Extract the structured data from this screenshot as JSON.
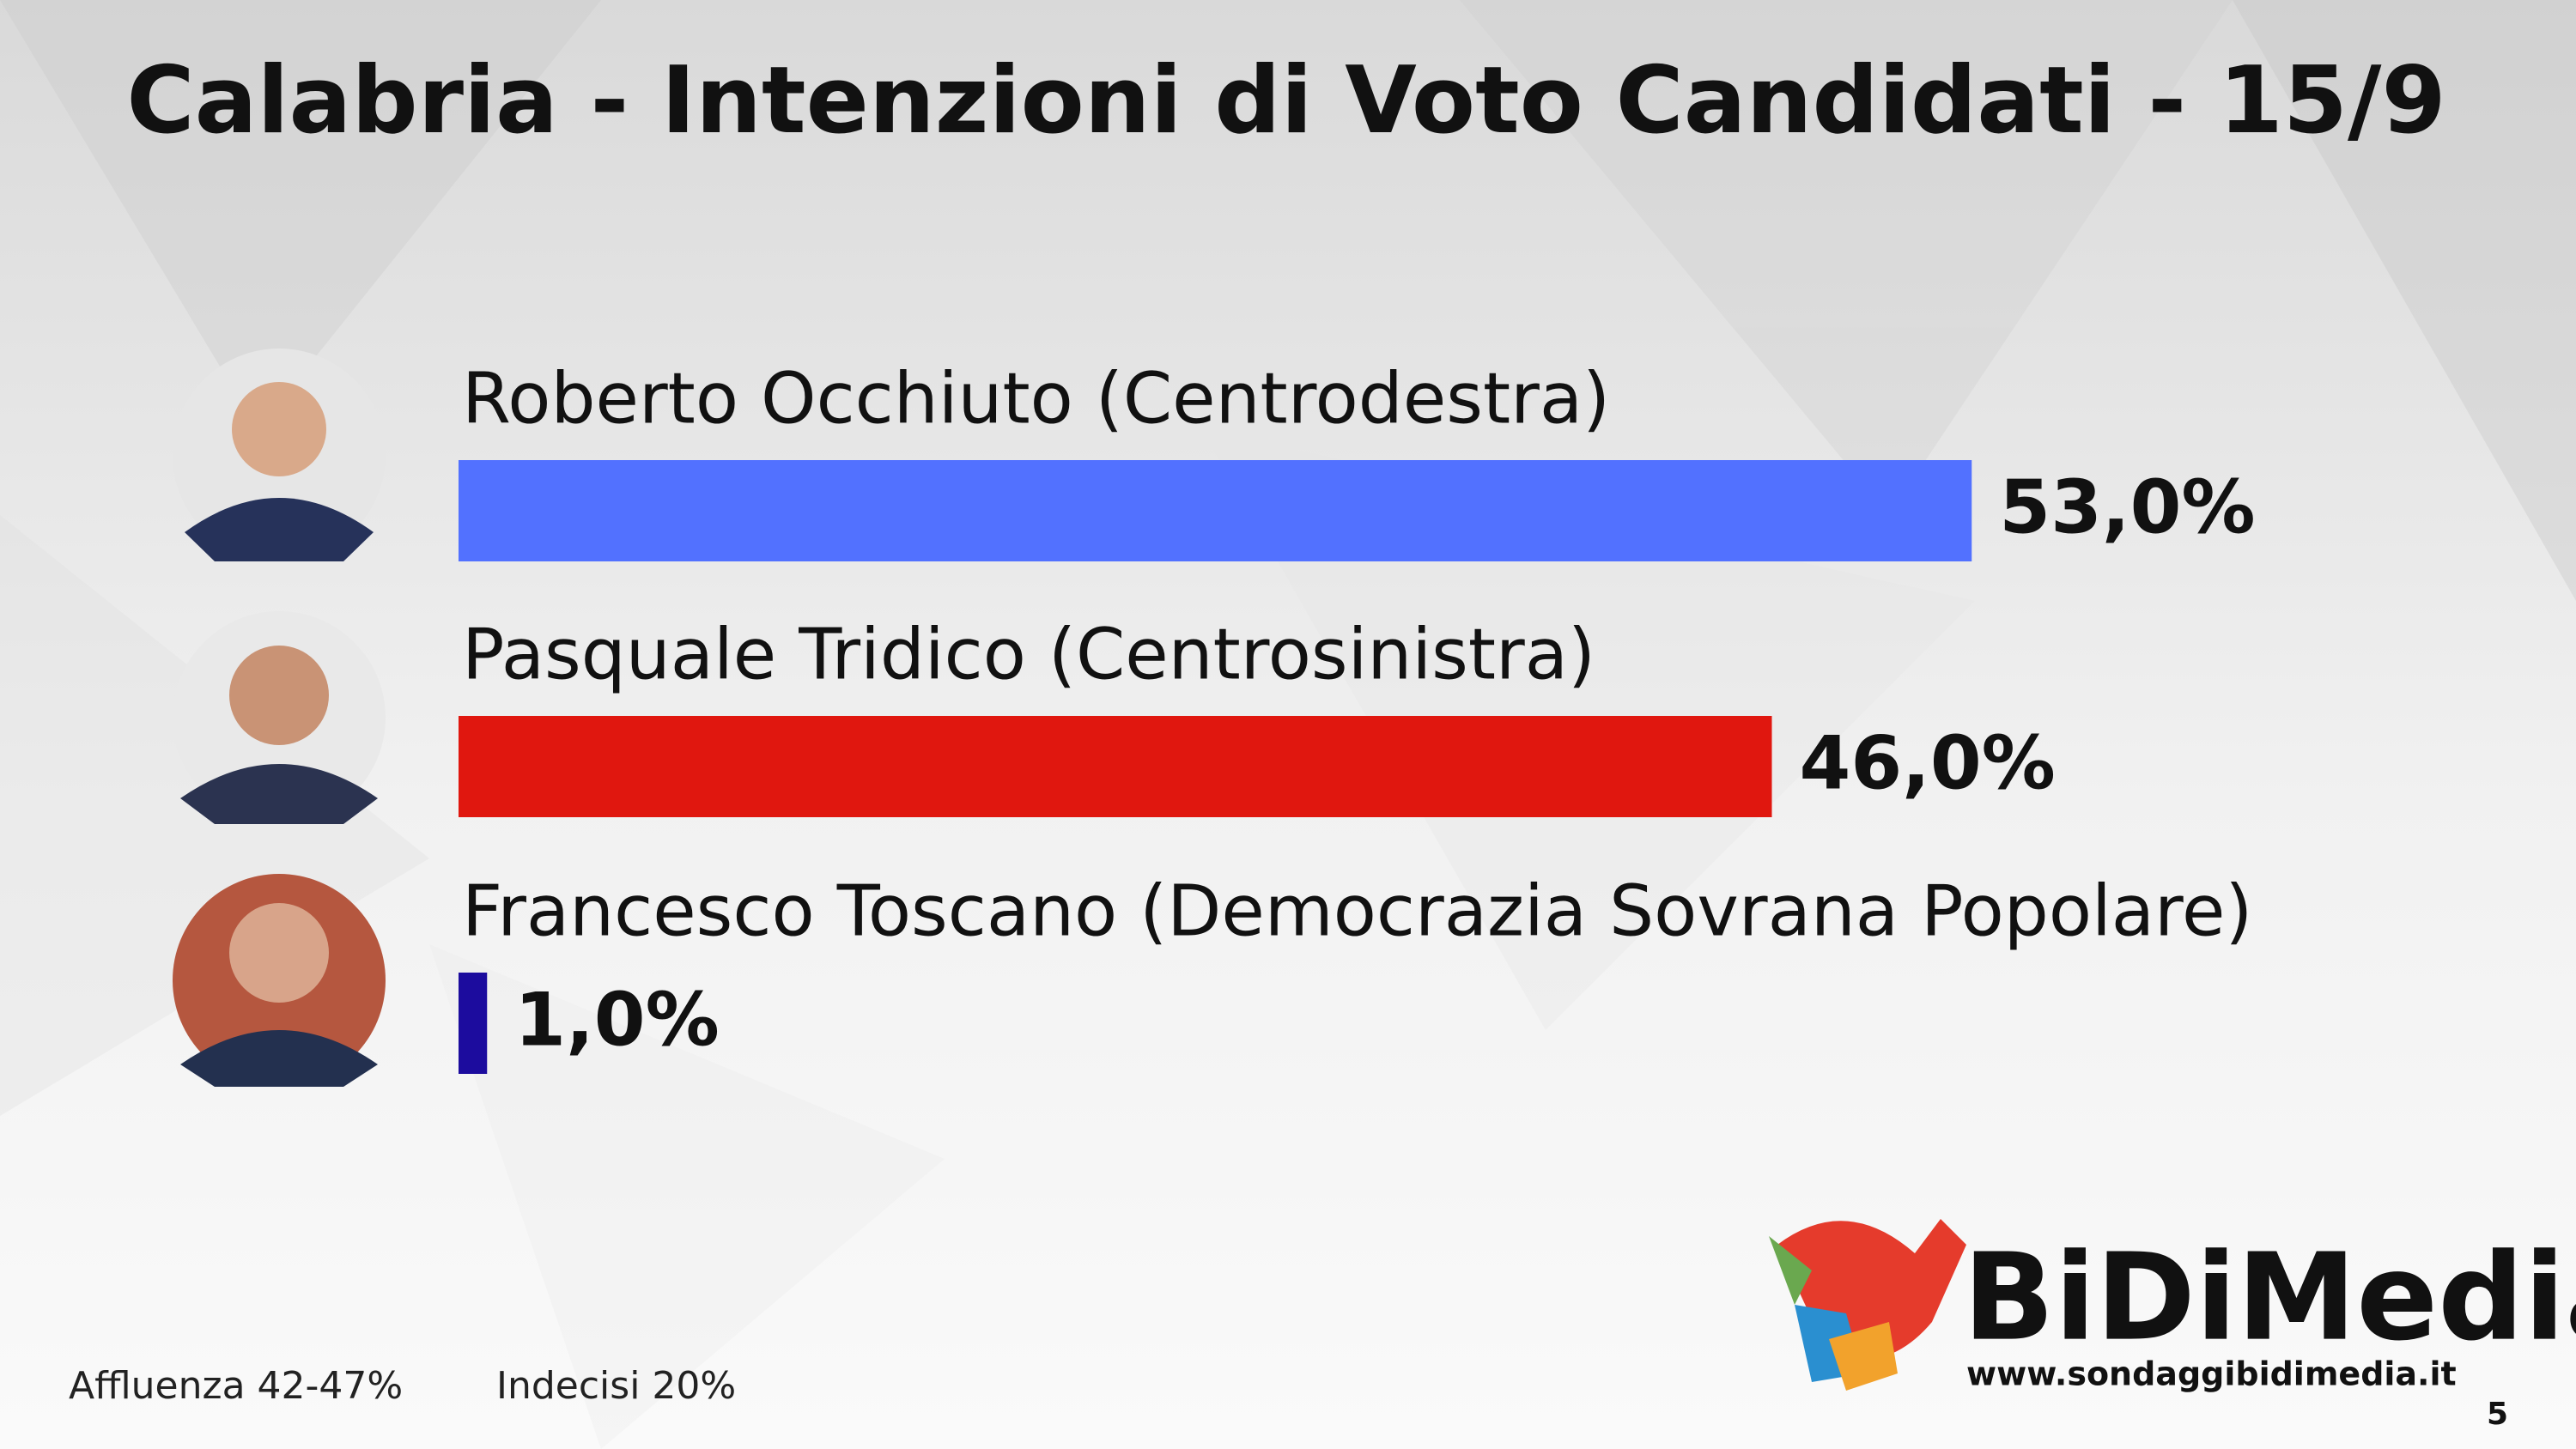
{
  "chart_data": {
    "type": "bar",
    "title": "Calabria - Intenzioni di Voto Candidati - 15/9",
    "categories": [
      "Roberto Occhiuto (Centrodestra)",
      "Pasquale Tridico (Centrosinistra)",
      "Francesco Toscano (Democrazia Sovrana Popolare)"
    ],
    "values": [
      53,
      46,
      1
    ],
    "value_labels": [
      "53,0%",
      "46,0%",
      "1,0%"
    ],
    "colors": [
      "#5271ff",
      "#e0170f",
      "#1c0c9e"
    ],
    "notes": [
      "Affluenza 42-47%",
      "Indecisi 20%"
    ]
  },
  "logo": {
    "name": "BiDiMedia",
    "url": "www.sondaggibidimedia.it"
  },
  "page_number": "5"
}
